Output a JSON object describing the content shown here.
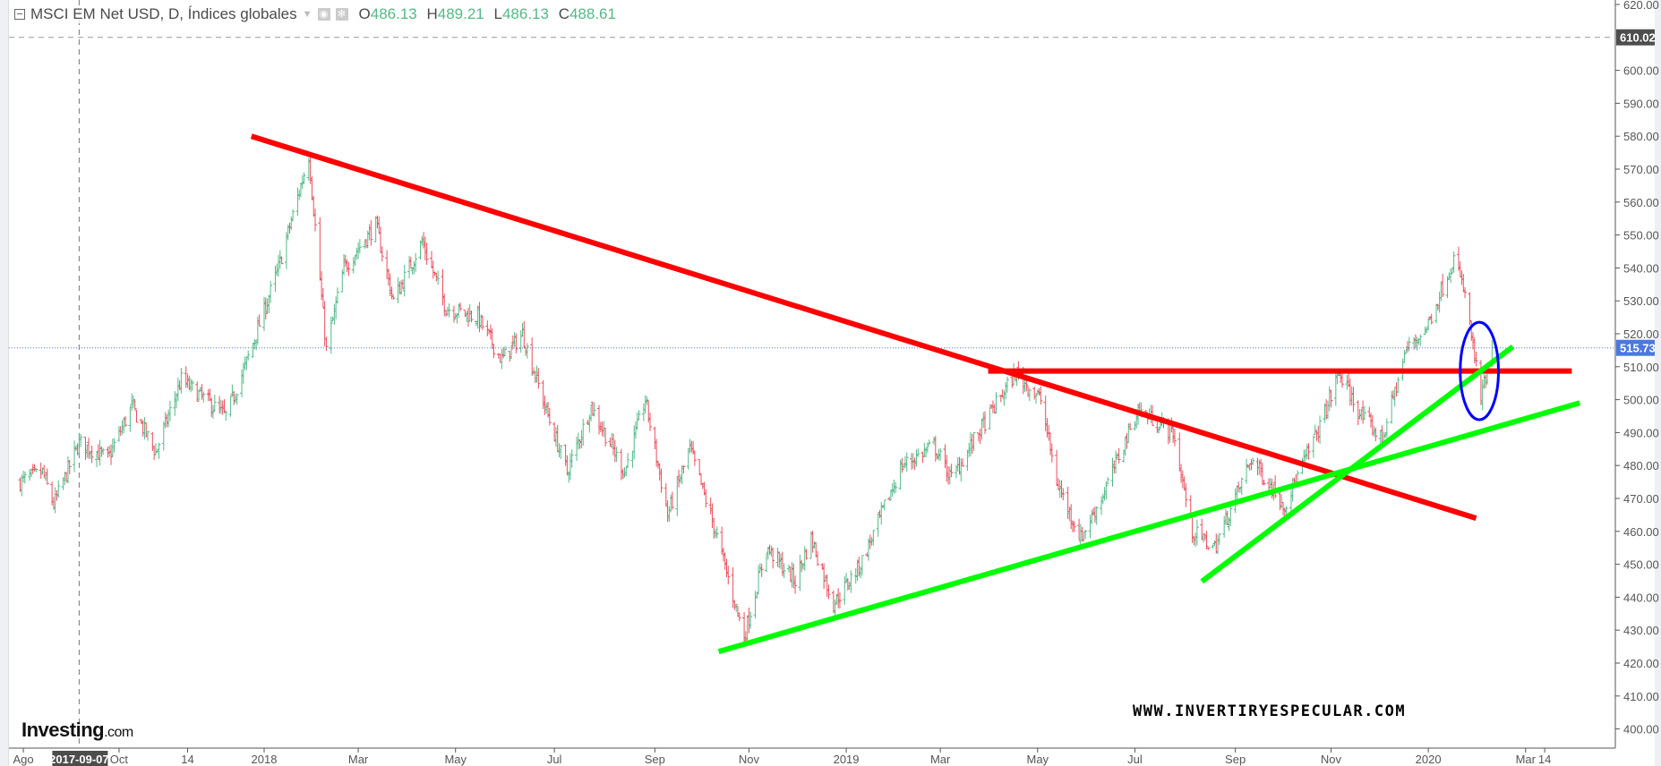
{
  "header": {
    "symbol": "MSCI EM Net USD, D, Índices globales",
    "open_label": "O",
    "open": "486.13",
    "high_label": "H",
    "high": "489.21",
    "low_label": "L",
    "low": "486.13",
    "close_label": "C",
    "close": "488.61"
  },
  "branding": {
    "logo": "Investing",
    "logo_suffix": ".com",
    "watermark": "WWW.INVERTIRYESPECULAR.COM"
  },
  "colors": {
    "up": "#53b987",
    "down": "#eb4d5c",
    "red_line": "#ff0000",
    "green_line": "#00ff00",
    "ellipse": "#0000ff",
    "last_price": "#4a78e0"
  },
  "chart_data": {
    "type": "ohlc",
    "title": "MSCI EM Net USD, D",
    "ylim": [
      395,
      622
    ],
    "y_ticks": [
      "620.00",
      "600.00",
      "590.00",
      "580.00",
      "570.00",
      "560.00",
      "550.00",
      "540.00",
      "530.00",
      "520.00",
      "510.00",
      "500.00",
      "490.00",
      "480.00",
      "470.00",
      "460.00",
      "450.00",
      "440.00",
      "430.00",
      "420.00",
      "410.00",
      "400.00"
    ],
    "y_tick_values": [
      620,
      600,
      590,
      580,
      570,
      560,
      550,
      540,
      530,
      520,
      510,
      500,
      490,
      480,
      470,
      460,
      450,
      440,
      430,
      420,
      410,
      400
    ],
    "x_ticks": [
      {
        "label": "Ago",
        "date": "2017-08-03"
      },
      {
        "label": "Oct",
        "date": "2017-10-02"
      },
      {
        "label": "14",
        "date": "2017-11-14"
      },
      {
        "label": "2018",
        "date": "2018-01-01"
      },
      {
        "label": "Mar",
        "date": "2018-03-01"
      },
      {
        "label": "May",
        "date": "2018-05-01"
      },
      {
        "label": "Jul",
        "date": "2018-07-02"
      },
      {
        "label": "Sep",
        "date": "2018-09-03"
      },
      {
        "label": "Nov",
        "date": "2018-11-01"
      },
      {
        "label": "2019",
        "date": "2019-01-01"
      },
      {
        "label": "Mar",
        "date": "2019-03-01"
      },
      {
        "label": "May",
        "date": "2019-05-01"
      },
      {
        "label": "Jul",
        "date": "2019-07-01"
      },
      {
        "label": "Sep",
        "date": "2019-09-02"
      },
      {
        "label": "Nov",
        "date": "2019-11-01"
      },
      {
        "label": "2020",
        "date": "2020-01-01"
      },
      {
        "label": "Mar",
        "date": "2020-03-02"
      },
      {
        "label": "14",
        "date": "2020-03-14"
      }
    ],
    "crosshair": {
      "date": "2017-09-07",
      "label": "2017-09-07"
    },
    "high_marker": {
      "value": 610.02,
      "label": "610.02"
    },
    "last_price": {
      "value": 515.73,
      "label": "515.73"
    },
    "price_path": [
      [
        "2017-08-01",
        475
      ],
      [
        "2017-08-15",
        478
      ],
      [
        "2017-08-22",
        468
      ],
      [
        "2017-09-07",
        487
      ],
      [
        "2017-09-25",
        482
      ],
      [
        "2017-10-10",
        498
      ],
      [
        "2017-10-25",
        484
      ],
      [
        "2017-11-10",
        506
      ],
      [
        "2017-11-25",
        500
      ],
      [
        "2017-12-08",
        495
      ],
      [
        "2017-12-20",
        510
      ],
      [
        "2018-01-10",
        540
      ],
      [
        "2018-01-29",
        574
      ],
      [
        "2018-02-09",
        515
      ],
      [
        "2018-02-20",
        540
      ],
      [
        "2018-03-12",
        553
      ],
      [
        "2018-03-23",
        530
      ],
      [
        "2018-04-10",
        548
      ],
      [
        "2018-04-25",
        528
      ],
      [
        "2018-05-15",
        525
      ],
      [
        "2018-05-30",
        512
      ],
      [
        "2018-06-12",
        520
      ],
      [
        "2018-06-28",
        495
      ],
      [
        "2018-07-10",
        478
      ],
      [
        "2018-07-25",
        498
      ],
      [
        "2018-08-15",
        478
      ],
      [
        "2018-08-28",
        500
      ],
      [
        "2018-09-11",
        465
      ],
      [
        "2018-09-25",
        485
      ],
      [
        "2018-10-11",
        460
      ],
      [
        "2018-10-29",
        428
      ],
      [
        "2018-11-12",
        455
      ],
      [
        "2018-11-30",
        445
      ],
      [
        "2018-12-10",
        458
      ],
      [
        "2018-12-24",
        438
      ],
      [
        "2019-01-10",
        450
      ],
      [
        "2019-02-05",
        480
      ],
      [
        "2019-02-25",
        486
      ],
      [
        "2019-03-08",
        476
      ],
      [
        "2019-03-25",
        490
      ],
      [
        "2019-04-17",
        508
      ],
      [
        "2019-05-03",
        500
      ],
      [
        "2019-05-13",
        475
      ],
      [
        "2019-05-28",
        458
      ],
      [
        "2019-06-10",
        470
      ],
      [
        "2019-07-03",
        497
      ],
      [
        "2019-07-25",
        490
      ],
      [
        "2019-08-06",
        460
      ],
      [
        "2019-08-20",
        455
      ],
      [
        "2019-09-12",
        482
      ],
      [
        "2019-10-03",
        468
      ],
      [
        "2019-10-25",
        492
      ],
      [
        "2019-11-06",
        508
      ],
      [
        "2019-11-20",
        495
      ],
      [
        "2019-12-03",
        488
      ],
      [
        "2019-12-18",
        515
      ],
      [
        "2019-12-31",
        522
      ],
      [
        "2020-01-17",
        543
      ],
      [
        "2020-01-24",
        532
      ],
      [
        "2020-02-03",
        500
      ],
      [
        "2020-02-10",
        515
      ]
    ],
    "trendlines": [
      {
        "name": "resistance-downtrend",
        "color": "red",
        "from": [
          "2017-12-24",
          580
        ],
        "to": [
          "2020-01-31",
          464
        ]
      },
      {
        "name": "horizontal-resistance",
        "color": "red",
        "from": [
          "2019-03-31",
          508.7
        ],
        "to": [
          "2020-03-31",
          508.7
        ]
      },
      {
        "name": "long-support",
        "color": "green",
        "from": [
          "2018-10-13",
          423.5
        ],
        "to": [
          "2020-04-05",
          499
        ]
      },
      {
        "name": "steep-support",
        "color": "green",
        "from": [
          "2019-08-12",
          444.8
        ],
        "to": [
          "2020-02-23",
          516.1
        ]
      }
    ],
    "highlight_ellipse": {
      "center": [
        "2020-02-02",
        508.7
      ],
      "price_radius": 14.8,
      "day_radius": 12
    }
  }
}
